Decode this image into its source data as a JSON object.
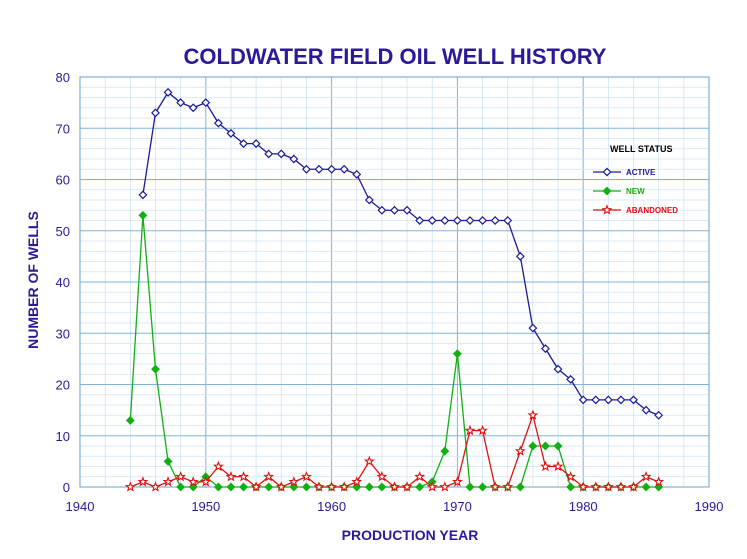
{
  "chart_data": {
    "type": "line",
    "title": "COLDWATER FIELD OIL WELL HISTORY",
    "xlabel": "PRODUCTION YEAR",
    "ylabel": "NUMBER OF WELLS",
    "xlim": [
      1940,
      1990
    ],
    "ylim": [
      0,
      80
    ],
    "x_ticks": [
      1940,
      1950,
      1960,
      1970,
      1980,
      1990
    ],
    "y_ticks": [
      0,
      10,
      20,
      30,
      40,
      50,
      60,
      70,
      80
    ],
    "grid": true,
    "legend": {
      "title": "WELL STATUS",
      "position": "right"
    },
    "series": [
      {
        "name": "ACTIVE",
        "color": "#1a1a9a",
        "marker": "diamond-open",
        "points": [
          [
            1945,
            57
          ],
          [
            1946,
            73
          ],
          [
            1947,
            77
          ],
          [
            1948,
            75
          ],
          [
            1949,
            74
          ],
          [
            1950,
            75
          ],
          [
            1951,
            71
          ],
          [
            1952,
            69
          ],
          [
            1953,
            67
          ],
          [
            1954,
            67
          ],
          [
            1955,
            65
          ],
          [
            1956,
            65
          ],
          [
            1957,
            64
          ],
          [
            1958,
            62
          ],
          [
            1959,
            62
          ],
          [
            1960,
            62
          ],
          [
            1961,
            62
          ],
          [
            1962,
            61
          ],
          [
            1963,
            56
          ],
          [
            1964,
            54
          ],
          [
            1965,
            54
          ],
          [
            1966,
            54
          ],
          [
            1967,
            52
          ],
          [
            1968,
            52
          ],
          [
            1969,
            52
          ],
          [
            1970,
            52
          ],
          [
            1971,
            52
          ],
          [
            1972,
            52
          ],
          [
            1973,
            52
          ],
          [
            1974,
            52
          ],
          [
            1975,
            45
          ],
          [
            1976,
            31
          ],
          [
            1977,
            27
          ],
          [
            1978,
            23
          ],
          [
            1979,
            21
          ],
          [
            1980,
            17
          ],
          [
            1981,
            17
          ],
          [
            1982,
            17
          ],
          [
            1983,
            17
          ],
          [
            1984,
            17
          ],
          [
            1985,
            15
          ],
          [
            1986,
            14
          ]
        ]
      },
      {
        "name": "NEW",
        "color": "#11b011",
        "marker": "diamond-filled",
        "points": [
          [
            1944,
            13
          ],
          [
            1945,
            53
          ],
          [
            1946,
            23
          ],
          [
            1947,
            5
          ],
          [
            1948,
            0
          ],
          [
            1949,
            0
          ],
          [
            1950,
            2
          ],
          [
            1951,
            0
          ],
          [
            1952,
            0
          ],
          [
            1953,
            0
          ],
          [
            1954,
            0
          ],
          [
            1955,
            0
          ],
          [
            1956,
            0
          ],
          [
            1957,
            0
          ],
          [
            1958,
            0
          ],
          [
            1959,
            0
          ],
          [
            1960,
            0
          ],
          [
            1961,
            0
          ],
          [
            1962,
            0
          ],
          [
            1963,
            0
          ],
          [
            1964,
            0
          ],
          [
            1965,
            0
          ],
          [
            1966,
            0
          ],
          [
            1967,
            0
          ],
          [
            1968,
            1
          ],
          [
            1969,
            7
          ],
          [
            1970,
            26
          ],
          [
            1971,
            0
          ],
          [
            1972,
            0
          ],
          [
            1973,
            0
          ],
          [
            1974,
            0
          ],
          [
            1975,
            0
          ],
          [
            1976,
            8
          ],
          [
            1977,
            8
          ],
          [
            1978,
            8
          ],
          [
            1979,
            0
          ],
          [
            1980,
            0
          ],
          [
            1981,
            0
          ],
          [
            1982,
            0
          ],
          [
            1983,
            0
          ],
          [
            1984,
            0
          ],
          [
            1985,
            0
          ],
          [
            1986,
            0
          ]
        ]
      },
      {
        "name": "ABANDONED",
        "color": "#e01010",
        "marker": "star-open",
        "points": [
          [
            1944,
            0
          ],
          [
            1945,
            1
          ],
          [
            1946,
            0
          ],
          [
            1947,
            1
          ],
          [
            1948,
            2
          ],
          [
            1949,
            1
          ],
          [
            1950,
            1
          ],
          [
            1951,
            4
          ],
          [
            1952,
            2
          ],
          [
            1953,
            2
          ],
          [
            1954,
            0
          ],
          [
            1955,
            2
          ],
          [
            1956,
            0
          ],
          [
            1957,
            1
          ],
          [
            1958,
            2
          ],
          [
            1959,
            0
          ],
          [
            1960,
            0
          ],
          [
            1961,
            0
          ],
          [
            1962,
            1
          ],
          [
            1963,
            5
          ],
          [
            1964,
            2
          ],
          [
            1965,
            0
          ],
          [
            1966,
            0
          ],
          [
            1967,
            2
          ],
          [
            1968,
            0
          ],
          [
            1969,
            0
          ],
          [
            1970,
            1
          ],
          [
            1971,
            11
          ],
          [
            1972,
            11
          ],
          [
            1973,
            0
          ],
          [
            1974,
            0
          ],
          [
            1975,
            7
          ],
          [
            1976,
            14
          ],
          [
            1977,
            4
          ],
          [
            1978,
            4
          ],
          [
            1979,
            2
          ],
          [
            1980,
            0
          ],
          [
            1981,
            0
          ],
          [
            1982,
            0
          ],
          [
            1983,
            0
          ],
          [
            1984,
            0
          ],
          [
            1985,
            2
          ],
          [
            1986,
            1
          ]
        ]
      }
    ]
  }
}
